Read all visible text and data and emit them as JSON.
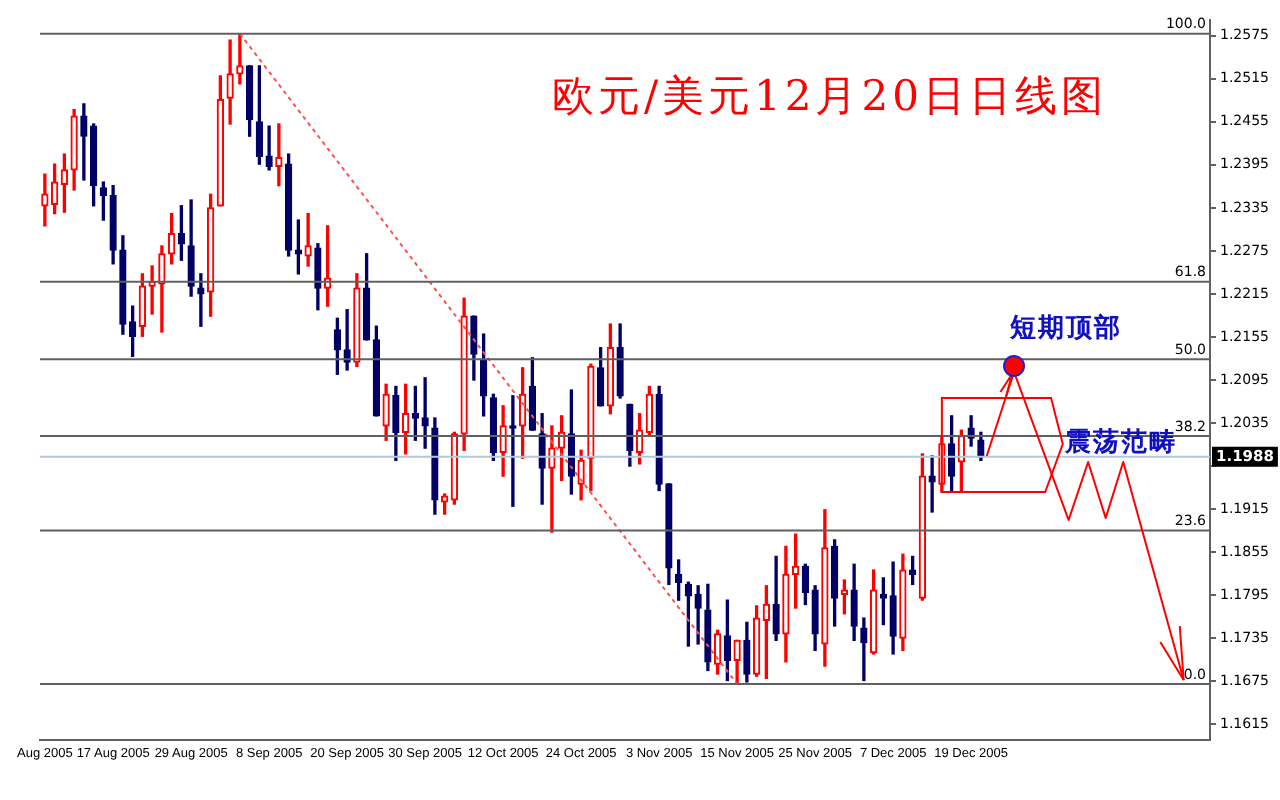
{
  "chart_data": {
    "type": "candlestick",
    "title": "欧元/美元12月20日日线图",
    "categories": [
      "Aug 2005",
      null,
      null,
      null,
      null,
      null,
      null,
      "17 Aug 2005",
      null,
      null,
      null,
      null,
      null,
      null,
      null,
      "29 Aug 2005",
      null,
      null,
      null,
      null,
      null,
      null,
      null,
      "8 Sep 2005",
      null,
      null,
      null,
      null,
      null,
      null,
      null,
      "20 Sep 2005",
      null,
      null,
      null,
      null,
      null,
      null,
      null,
      "30 Sep 2005",
      null,
      null,
      null,
      null,
      null,
      null,
      null,
      "12 Oct 2005",
      null,
      null,
      null,
      null,
      null,
      null,
      null,
      "24 Oct 2005",
      null,
      null,
      null,
      null,
      null,
      null,
      null,
      "3 Nov 2005",
      null,
      null,
      null,
      null,
      null,
      null,
      null,
      "15 Nov 2005",
      null,
      null,
      null,
      null,
      null,
      null,
      null,
      "25 Nov 2005",
      null,
      null,
      null,
      null,
      null,
      null,
      null,
      "7 Dec 2005",
      null,
      null,
      null,
      null,
      null,
      null,
      null,
      "19 Dec 2005",
      null,
      null,
      null,
      null,
      null,
      null,
      null,
      null,
      null,
      null,
      null,
      null,
      null,
      null,
      null,
      null,
      null,
      null,
      null,
      null,
      null,
      null,
      null,
      null
    ],
    "ohlc": [
      [
        1.2338,
        1.2382,
        1.231,
        1.2354
      ],
      [
        1.234,
        1.2396,
        1.2327,
        1.2371
      ],
      [
        1.2368,
        1.241,
        1.2329,
        1.2388
      ],
      [
        1.2388,
        1.2472,
        1.236,
        1.2463
      ],
      [
        1.2463,
        1.248,
        1.2374,
        1.2435
      ],
      [
        1.2449,
        1.2452,
        1.2338,
        1.2366
      ],
      [
        1.2363,
        1.2371,
        1.2318,
        1.2352
      ],
      [
        1.2352,
        1.2366,
        1.2257,
        1.2276
      ],
      [
        1.2276,
        1.2296,
        1.2159,
        1.2173
      ],
      [
        1.2176,
        1.2198,
        1.2128,
        1.2156
      ],
      [
        1.217,
        1.2243,
        1.2156,
        1.2226
      ],
      [
        1.2226,
        1.2254,
        1.2187,
        1.2232
      ],
      [
        1.2229,
        1.2282,
        1.2162,
        1.2271
      ],
      [
        1.2271,
        1.2327,
        1.2257,
        1.2299
      ],
      [
        1.2299,
        1.2338,
        1.2262,
        1.2285
      ],
      [
        1.2282,
        1.2346,
        1.2212,
        1.2226
      ],
      [
        1.2223,
        1.2243,
        1.217,
        1.2215
      ],
      [
        1.2218,
        1.2354,
        1.2184,
        1.2335
      ],
      [
        1.2338,
        1.2519,
        1.2338,
        1.2486
      ],
      [
        1.2488,
        1.2569,
        1.2452,
        1.2522
      ],
      [
        1.2522,
        1.2578,
        1.2508,
        1.2533
      ],
      [
        1.2533,
        1.2533,
        1.2435,
        1.2458
      ],
      [
        1.2455,
        1.2533,
        1.2396,
        1.2407
      ],
      [
        1.2407,
        1.2449,
        1.2388,
        1.2393
      ],
      [
        1.2393,
        1.2452,
        1.2366,
        1.2405
      ],
      [
        1.2396,
        1.241,
        1.2268,
        1.2276
      ],
      [
        1.2276,
        1.2318,
        1.2243,
        1.2271
      ],
      [
        1.2268,
        1.2327,
        1.2254,
        1.2282
      ],
      [
        1.2279,
        1.2285,
        1.2193,
        1.2223
      ],
      [
        1.2223,
        1.231,
        1.2198,
        1.2237
      ],
      [
        1.2165,
        1.2181,
        1.2103,
        1.2137
      ],
      [
        1.2137,
        1.2193,
        1.2109,
        1.212
      ],
      [
        1.212,
        1.2243,
        1.2114,
        1.2223
      ],
      [
        1.2223,
        1.2271,
        1.2151,
        1.2151
      ],
      [
        1.2151,
        1.217,
        1.2045,
        1.2045
      ],
      [
        1.2031,
        1.2089,
        1.2011,
        1.2075
      ],
      [
        1.2073,
        1.2086,
        1.1983,
        1.2022
      ],
      [
        1.2022,
        1.2089,
        1.1992,
        1.2048
      ],
      [
        1.2048,
        1.2086,
        1.2011,
        1.2042
      ],
      [
        1.2042,
        1.2098,
        1.2,
        1.2031
      ],
      [
        1.2028,
        1.2042,
        1.1908,
        1.1928
      ],
      [
        1.1925,
        1.1936,
        1.1908,
        1.1933
      ],
      [
        1.1928,
        1.2022,
        1.1922,
        1.202
      ],
      [
        1.202,
        1.2209,
        1.1997,
        1.2184
      ],
      [
        1.2184,
        1.2184,
        1.2095,
        1.2131
      ],
      [
        1.2123,
        1.2159,
        1.2045,
        1.2073
      ],
      [
        1.207,
        1.2075,
        1.1983,
        1.1994
      ],
      [
        1.1994,
        1.2059,
        1.1961,
        1.2031
      ],
      [
        1.2031,
        1.2073,
        1.1919,
        1.2028
      ],
      [
        1.2031,
        1.2112,
        1.1986,
        1.2075
      ],
      [
        1.2086,
        1.2126,
        1.2025,
        1.2025
      ],
      [
        1.202,
        1.2048,
        1.1922,
        1.1972
      ],
      [
        1.1972,
        1.2031,
        1.1883,
        1.2
      ],
      [
        1.2,
        1.2045,
        1.1955,
        1.2022
      ],
      [
        1.202,
        1.2081,
        1.1936,
        1.1961
      ],
      [
        1.195,
        1.1997,
        1.1928,
        1.1983
      ],
      [
        1.1986,
        1.2117,
        1.1941,
        1.2114
      ],
      [
        1.2112,
        1.214,
        1.2059,
        1.2059
      ],
      [
        1.2059,
        1.2173,
        1.2048,
        1.214
      ],
      [
        1.214,
        1.2173,
        1.207,
        1.2073
      ],
      [
        1.2061,
        1.2061,
        1.1975,
        1.1997
      ],
      [
        1.1994,
        1.2048,
        1.1978,
        1.2025
      ],
      [
        1.2022,
        1.2086,
        1.2017,
        1.2075
      ],
      [
        1.2075,
        1.2086,
        1.1941,
        1.195
      ],
      [
        1.195,
        1.195,
        1.181,
        1.1833
      ],
      [
        1.1824,
        1.1844,
        1.1788,
        1.1813
      ],
      [
        1.181,
        1.1813,
        1.1724,
        1.1794
      ],
      [
        1.1796,
        1.1808,
        1.1727,
        1.1777
      ],
      [
        1.1774,
        1.181,
        1.169,
        1.1702
      ],
      [
        1.1699,
        1.1746,
        1.1685,
        1.1741
      ],
      [
        1.1738,
        1.1788,
        1.1676,
        1.1704
      ],
      [
        1.1704,
        1.1732,
        1.1671,
        1.1732
      ],
      [
        1.1732,
        1.1757,
        1.1674,
        1.1685
      ],
      [
        1.1685,
        1.178,
        1.1682,
        1.1763
      ],
      [
        1.176,
        1.1808,
        1.1679,
        1.1782
      ],
      [
        1.1782,
        1.1849,
        1.1732,
        1.1741
      ],
      [
        1.1741,
        1.1863,
        1.1702,
        1.1824
      ],
      [
        1.1824,
        1.188,
        1.1777,
        1.1835
      ],
      [
        1.1835,
        1.1838,
        1.1782,
        1.1799
      ],
      [
        1.1802,
        1.1808,
        1.1718,
        1.1741
      ],
      [
        1.1727,
        1.1914,
        1.1696,
        1.1861
      ],
      [
        1.1863,
        1.1872,
        1.1752,
        1.1791
      ],
      [
        1.1796,
        1.1816,
        1.1769,
        1.1802
      ],
      [
        1.1802,
        1.1838,
        1.1732,
        1.1752
      ],
      [
        1.1749,
        1.1763,
        1.1676,
        1.1729
      ],
      [
        1.1715,
        1.183,
        1.1713,
        1.1802
      ],
      [
        1.1796,
        1.1819,
        1.1754,
        1.1791
      ],
      [
        1.1794,
        1.1841,
        1.1713,
        1.1738
      ],
      [
        1.1735,
        1.1852,
        1.1718,
        1.183
      ],
      [
        1.183,
        1.1849,
        1.181,
        1.1824
      ],
      [
        1.1791,
        1.1992,
        1.1788,
        1.1961
      ],
      [
        1.1961,
        1.1989,
        1.1911,
        1.1953
      ],
      [
        1.195,
        1.2017,
        1.1939,
        1.2006
      ],
      [
        1.2006,
        1.2045,
        1.1939,
        1.1961
      ],
      [
        1.1981,
        1.2025,
        1.1939,
        1.2017
      ],
      [
        1.2028,
        1.2045,
        1.2003,
        1.2014
      ],
      [
        1.2011,
        1.2022,
        1.1983,
        1.1988
      ],
      null,
      null,
      null,
      null,
      null,
      null,
      null,
      null,
      null,
      null,
      null,
      null,
      null,
      null,
      null,
      null,
      null,
      null,
      null,
      null,
      null,
      null,
      null
    ],
    "colors": [
      "#ff0000",
      "#ff0000",
      "#ff0000",
      "#ff0000",
      "#000066",
      "#000066",
      "#000066",
      "#000066",
      "#000066",
      "#000066",
      "#ff0000",
      "#ff0000",
      "#ff0000",
      "#ff0000",
      "#000066",
      "#000066",
      "#000066",
      "#ff0000",
      "#ff0000",
      "#ff0000",
      "#ff0000",
      "#000066",
      "#000066",
      "#000066",
      "#ff0000",
      "#000066",
      "#000066",
      "#ff0000",
      "#000066",
      "#ff0000",
      "#000066",
      "#000066",
      "#ff0000",
      "#000066",
      "#000066",
      "#ff0000",
      "#000066",
      "#ff0000",
      "#000066",
      "#000066",
      "#000066",
      "#ff0000",
      "#ff0000",
      "#ff0000",
      "#000066",
      "#000066",
      "#000066",
      "#ff0000",
      "#000066",
      "#ff0000",
      "#000066",
      "#000066",
      "#ff0000",
      "#ff0000",
      "#000066",
      "#ff0000",
      "#ff0000",
      "#000066",
      "#ff0000",
      "#000066",
      "#000066",
      "#ff0000",
      "#ff0000",
      "#000066",
      "#000066",
      "#000066",
      "#000066",
      "#000066",
      "#000066",
      "#ff0000",
      "#000066",
      "#ff0000",
      "#000066",
      "#ff0000",
      "#ff0000",
      "#000066",
      "#ff0000",
      "#ff0000",
      "#000066",
      "#000066",
      "#ff0000",
      "#000066",
      "#ff0000",
      "#000066",
      "#000066",
      "#ff0000",
      "#000066",
      "#000066",
      "#ff0000",
      "#000066",
      "#ff0000",
      "#000066",
      "#ff0000",
      "#000066",
      "#ff0000",
      "#000066",
      "#000066",
      null,
      null,
      null,
      null,
      null,
      null,
      null,
      null,
      null,
      null,
      null,
      null,
      null,
      null,
      null,
      null,
      null,
      null,
      null,
      null,
      null,
      null,
      null
    ],
    "ylim": [
      1.1593,
      1.2597
    ],
    "series": [
      {
        "type": "line",
        "color": "#ff5050",
        "line_style": "dotted",
        "values": [
          null,
          null,
          null,
          null,
          null,
          null,
          null,
          null,
          null,
          null,
          null,
          null,
          null,
          null,
          null,
          null,
          null,
          null,
          null,
          null,
          1.2578,
          null,
          null,
          null,
          null,
          null,
          null,
          null,
          null,
          null,
          null,
          null,
          null,
          null,
          null,
          null,
          null,
          null,
          null,
          null,
          null,
          null,
          null,
          null,
          null,
          null,
          null,
          null,
          null,
          null,
          null,
          null,
          null,
          null,
          null,
          null,
          null,
          null,
          null,
          null,
          null,
          null,
          null,
          null,
          null,
          null,
          null,
          null,
          null,
          null,
          null,
          1.1671,
          null,
          null,
          null,
          null,
          null,
          null,
          null,
          null,
          null,
          null,
          null,
          null,
          null,
          null,
          null,
          null,
          null,
          null,
          null,
          null,
          null,
          null,
          null,
          null,
          null,
          null,
          null,
          null,
          null,
          null,
          null,
          null,
          null,
          null,
          null,
          null,
          null,
          null,
          null,
          null,
          null,
          null,
          null,
          null,
          null,
          null,
          null,
          null
        ]
      }
    ],
    "yticks": [
      1.1615,
      1.1675,
      1.1735,
      1.1795,
      1.1855,
      1.1915,
      {
        "value": 1.1975,
        "label": null
      },
      1.2035,
      1.2095,
      1.2155,
      1.2215,
      1.2275,
      1.2335,
      1.2395,
      1.2455,
      1.2515,
      1.2575
    ],
    "ref_lines": [
      {
        "axis": "y",
        "value": 1.2578,
        "color": "#606060"
      },
      {
        "axis": "y",
        "value": 1.2232,
        "color": "#606060"
      },
      {
        "axis": "y",
        "value": 1.2124,
        "color": "#606060"
      },
      {
        "axis": "y",
        "value": 1.2017,
        "color": "#606060"
      },
      {
        "axis": "y",
        "value": 1.1885,
        "color": "#606060"
      },
      {
        "axis": "y",
        "value": 1.1671,
        "color": "#606060"
      },
      {
        "axis": "y",
        "value": 1.1988,
        "color": "#b4c8dc"
      }
    ],
    "annotations": [
      "短期顶部",
      "震荡范畴",
      {
        "text": "1.1988",
        "y": 1.1988
      },
      {
        "text": "100.0",
        "y": 1.2578
      },
      {
        "text": "61.8",
        "y": 1.2232
      },
      {
        "text": "50.0",
        "y": 1.2124
      },
      {
        "text": "38.2",
        "y": 1.2017
      },
      {
        "text": "23.6",
        "y": 1.1885
      },
      {
        "text": "0.0",
        "y": 1.1671
      }
    ]
  }
}
